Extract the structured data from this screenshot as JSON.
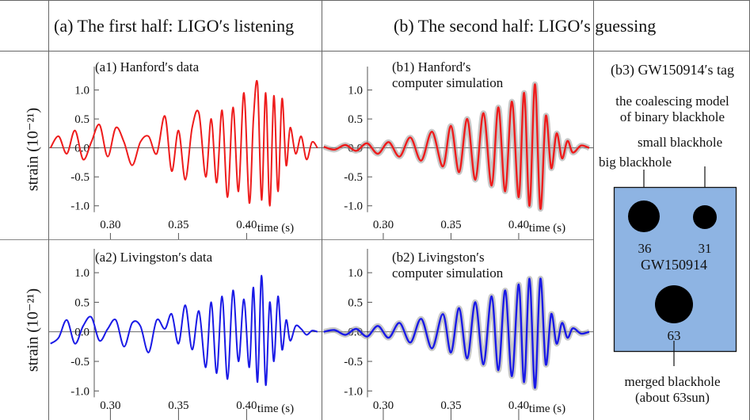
{
  "headers": {
    "left": "(a) The first half: LIGO′s listening",
    "right": "(b) The second half: LIGO′s guessing"
  },
  "y_axis_label": "strain (10⁻²¹)",
  "colors": {
    "hanford": "#ee1c1c",
    "livingston": "#1a1ae6",
    "simulation_band": "#9a9a9a",
    "tag_box": "#8eb4e3",
    "grid": "#555555"
  },
  "chart_data": [
    {
      "id": "a1",
      "type": "line",
      "title": "(a1) Hanford′s data",
      "xlabel": "time (s)",
      "ylabel": "strain (10⁻²¹)",
      "xlim": [
        0.255,
        0.455
      ],
      "ylim": [
        -1.25,
        1.35
      ],
      "xticks": [
        "0.30",
        "0.35",
        "0.40"
      ],
      "yticks": [
        "1.0",
        "0.5",
        "0.0",
        "-0.5",
        "-1.0"
      ],
      "series": [
        {
          "x": [
            0.256,
            0.262,
            0.268,
            0.274,
            0.28,
            0.286,
            0.292,
            0.298,
            0.304,
            0.31,
            0.316,
            0.322,
            0.328,
            0.334,
            0.34,
            0.345,
            0.35,
            0.355,
            0.36,
            0.365,
            0.37,
            0.374,
            0.378,
            0.382,
            0.386,
            0.39,
            0.394,
            0.398,
            0.402,
            0.405,
            0.408,
            0.411,
            0.414,
            0.417,
            0.42,
            0.423,
            0.426,
            0.429,
            0.432,
            0.436,
            0.44,
            0.444,
            0.448,
            0.452
          ],
          "y": [
            0.0,
            0.2,
            -0.1,
            0.3,
            -0.2,
            0.1,
            0.4,
            -0.15,
            0.35,
            0.1,
            -0.3,
            0.1,
            0.2,
            -0.1,
            0.55,
            -0.4,
            0.3,
            -0.55,
            0.35,
            0.6,
            -0.5,
            0.5,
            -0.6,
            0.65,
            -0.85,
            0.7,
            -0.75,
            0.95,
            -0.95,
            0.5,
            1.1,
            -0.9,
            0.95,
            -1.0,
            0.9,
            -0.75,
            0.85,
            -0.3,
            0.35,
            -0.1,
            0.2,
            -0.2,
            0.1,
            0.0
          ]
        }
      ]
    },
    {
      "id": "b1",
      "type": "line",
      "title": "(b1) Hanford′s",
      "subtitle": "computer simulation",
      "xlabel": "time (s)",
      "xlim": [
        0.255,
        0.455
      ],
      "ylim": [
        -1.25,
        1.35
      ],
      "xticks": [
        "0.30",
        "0.35",
        "0.40"
      ],
      "yticks": [
        "1.0",
        "0.5",
        "0.0",
        "-0.5",
        "-1.0"
      ],
      "series": [
        {
          "x": [
            0.256,
            0.264,
            0.272,
            0.28,
            0.288,
            0.296,
            0.304,
            0.312,
            0.32,
            0.328,
            0.336,
            0.344,
            0.35,
            0.356,
            0.362,
            0.368,
            0.374,
            0.38,
            0.385,
            0.39,
            0.395,
            0.4,
            0.404,
            0.408,
            0.412,
            0.416,
            0.42,
            0.424,
            0.428,
            0.432,
            0.436,
            0.44,
            0.446,
            0.452
          ],
          "y": [
            0.02,
            -0.03,
            0.05,
            -0.05,
            0.08,
            -0.1,
            0.1,
            -0.15,
            0.18,
            -0.22,
            0.28,
            -0.32,
            0.38,
            -0.42,
            0.5,
            -0.55,
            0.6,
            -0.65,
            0.7,
            -0.75,
            0.8,
            -0.85,
            0.95,
            -1.0,
            1.1,
            -1.05,
            0.55,
            -0.35,
            0.25,
            -0.18,
            0.12,
            -0.08,
            0.04,
            0.0
          ]
        }
      ]
    },
    {
      "id": "a2",
      "type": "line",
      "title": "(a2) Livingston′s data",
      "xlabel": "time (s)",
      "ylabel": "strain (10⁻²¹)",
      "xlim": [
        0.255,
        0.455
      ],
      "ylim": [
        -1.25,
        1.35
      ],
      "xticks": [
        "0.30",
        "0.35",
        "0.40"
      ],
      "yticks": [
        "1.0",
        "0.5",
        "0.0",
        "-0.5",
        "-1.0"
      ],
      "series": [
        {
          "x": [
            0.256,
            0.262,
            0.268,
            0.274,
            0.28,
            0.286,
            0.292,
            0.298,
            0.304,
            0.31,
            0.316,
            0.322,
            0.328,
            0.334,
            0.34,
            0.345,
            0.35,
            0.355,
            0.36,
            0.365,
            0.37,
            0.374,
            0.378,
            0.382,
            0.386,
            0.39,
            0.394,
            0.398,
            0.402,
            0.405,
            0.408,
            0.411,
            0.414,
            0.417,
            0.42,
            0.423,
            0.426,
            0.429,
            0.432,
            0.436,
            0.44,
            0.444,
            0.448,
            0.452
          ],
          "y": [
            -0.2,
            -0.1,
            0.2,
            -0.2,
            0.1,
            0.25,
            -0.15,
            0.05,
            0.2,
            -0.25,
            0.15,
            0.1,
            -0.35,
            0.2,
            0.05,
            0.3,
            -0.2,
            0.45,
            -0.3,
            0.35,
            -0.6,
            0.5,
            -0.7,
            0.6,
            -0.8,
            0.7,
            -0.5,
            0.55,
            -0.6,
            0.75,
            -0.85,
            0.95,
            -0.9,
            0.5,
            -0.5,
            0.6,
            -0.3,
            0.2,
            -0.15,
            0.1,
            0.05,
            -0.05,
            0.02,
            0.0
          ]
        }
      ]
    },
    {
      "id": "b2",
      "type": "line",
      "title": "(b2) Livingston′s",
      "subtitle": "computer simulation",
      "xlabel": "time (s)",
      "xlim": [
        0.255,
        0.455
      ],
      "ylim": [
        -1.25,
        1.35
      ],
      "xticks": [
        "0.30",
        "0.35",
        "0.40"
      ],
      "yticks": [
        "1.0",
        "0.5",
        "0.0",
        "-0.5",
        "-1.0"
      ],
      "series": [
        {
          "x": [
            0.256,
            0.264,
            0.272,
            0.28,
            0.288,
            0.296,
            0.304,
            0.312,
            0.32,
            0.328,
            0.336,
            0.344,
            0.35,
            0.356,
            0.362,
            0.368,
            0.374,
            0.38,
            0.385,
            0.39,
            0.395,
            0.4,
            0.404,
            0.408,
            0.412,
            0.416,
            0.42,
            0.424,
            0.428,
            0.432,
            0.436,
            0.44,
            0.446,
            0.452
          ],
          "y": [
            0.0,
            0.03,
            -0.05,
            0.05,
            -0.08,
            0.1,
            -0.1,
            0.15,
            -0.18,
            0.22,
            -0.28,
            0.3,
            -0.35,
            0.4,
            -0.45,
            0.5,
            -0.55,
            0.6,
            -0.65,
            0.7,
            -0.75,
            0.8,
            -0.85,
            0.9,
            -0.95,
            0.9,
            -0.55,
            0.3,
            -0.2,
            0.15,
            -0.1,
            0.06,
            -0.03,
            0.0
          ]
        }
      ]
    }
  ],
  "tag": {
    "title": "(b3) GW150914′s tag",
    "model_line1": "the coalescing model",
    "model_line2": "of binary blackhole",
    "small_label": "small blackhole",
    "big_label": "big blackhole",
    "big_mass": "36",
    "small_mass": "31",
    "event_name": "GW150914",
    "merged_mass": "63",
    "merged_line1": "merged blackhole",
    "merged_line2": "(about 63sun)"
  }
}
